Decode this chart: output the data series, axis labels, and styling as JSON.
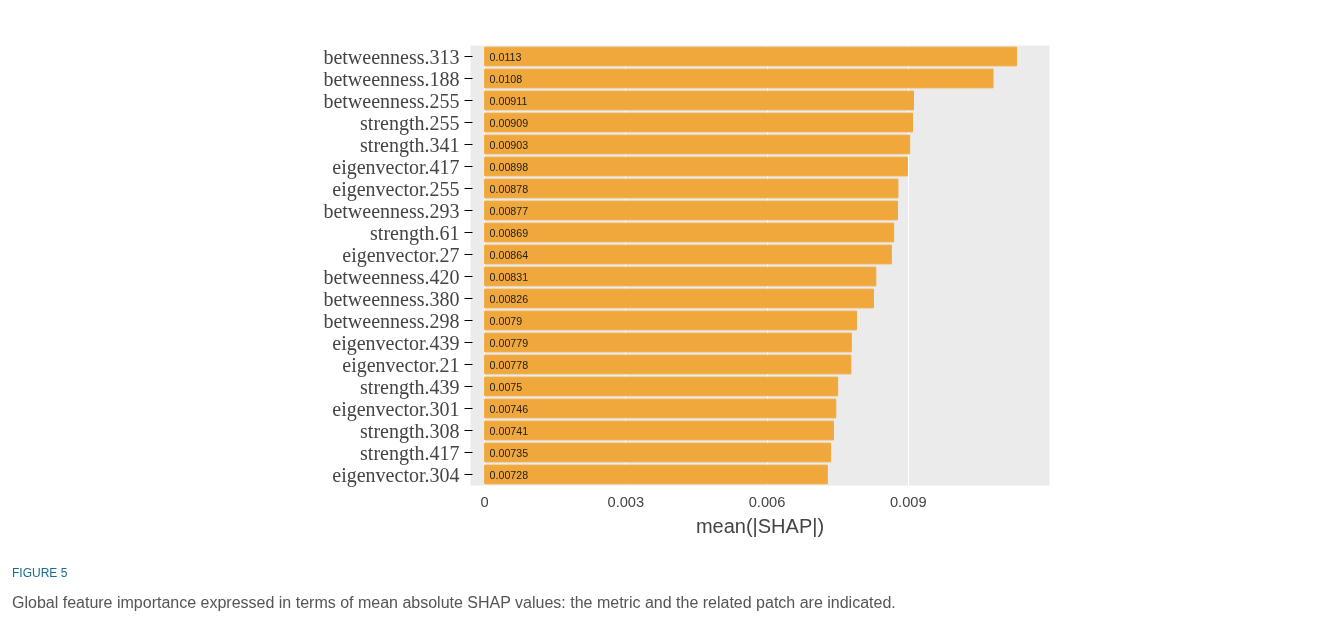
{
  "chart_data": {
    "type": "bar",
    "orientation": "horizontal",
    "categories": [
      "betweenness.313",
      "betweenness.188",
      "betweenness.255",
      "strength.255",
      "strength.341",
      "eigenvector.417",
      "eigenvector.255",
      "betweenness.293",
      "strength.61",
      "eigenvector.27",
      "betweenness.420",
      "betweenness.380",
      "betweenness.298",
      "eigenvector.439",
      "eigenvector.21",
      "strength.439",
      "eigenvector.301",
      "strength.308",
      "strength.417",
      "eigenvector.304"
    ],
    "values": [
      0.0113,
      0.0108,
      0.00911,
      0.00909,
      0.00903,
      0.00898,
      0.00878,
      0.00877,
      0.00869,
      0.00864,
      0.00831,
      0.00826,
      0.0079,
      0.00779,
      0.00778,
      0.0075,
      0.00746,
      0.00741,
      0.00735,
      0.00728
    ],
    "value_labels": [
      "0.0113",
      "0.0108",
      "0.00911",
      "0.00909",
      "0.00903",
      "0.00898",
      "0.00878",
      "0.00877",
      "0.00869",
      "0.00864",
      "0.00831",
      "0.00826",
      "0.0079",
      "0.00779",
      "0.00778",
      "0.0075",
      "0.00746",
      "0.00741",
      "0.00735",
      "0.00728"
    ],
    "color": "#f0a83c",
    "xlim": [
      -0.0003,
      0.012
    ],
    "xticks": [
      {
        "value": 0,
        "label": "0"
      },
      0.003,
      0.006,
      0.009
    ],
    "xlabel": "mean(|SHAP|)",
    "grid": "x",
    "annotations": [
      "FIGURE 5",
      "Global feature importance expressed in terms of mean absolute SHAP values: the metric and the related patch are indicated."
    ]
  }
}
